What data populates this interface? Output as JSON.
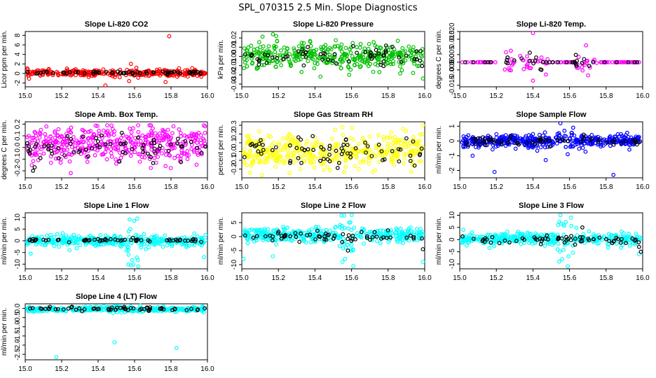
{
  "figure": {
    "title": "SPL_070315  2.5 Min. Slope Diagnostics"
  },
  "chart_data": [
    {
      "type": "scatter",
      "title": "Slope Li-820 CO2",
      "xlabel": "",
      "ylabel": "Licor ppm per min.",
      "xlim": [
        15.0,
        16.0
      ],
      "ylim": [
        -2.8,
        8.8
      ],
      "xticks": [
        15.0,
        15.2,
        15.4,
        15.6,
        15.8,
        16.0
      ],
      "xtick_labels": [
        "15.0",
        "15.2",
        "15.4",
        "15.6",
        "15.8",
        "16.0"
      ],
      "yticks": [
        -2,
        0,
        2,
        4,
        6,
        8
      ],
      "ytick_labels": [
        "-2",
        "0",
        "2",
        "4",
        "6",
        "8"
      ],
      "series": [
        {
          "color": "#ff0000",
          "center": 0.1,
          "spread": 0.35,
          "n": 300,
          "outliers": [
            [
              15.58,
              2.0
            ],
            [
              15.61,
              1.2
            ],
            [
              15.79,
              7.8
            ],
            [
              15.77,
              -1.8
            ],
            [
              15.44,
              -2.5
            ],
            [
              15.57,
              -1.6
            ],
            [
              15.62,
              -0.9
            ]
          ]
        },
        {
          "color": "#000000",
          "center": 0.15,
          "spread": 0.15,
          "n": 60,
          "outliers": []
        }
      ]
    },
    {
      "type": "scatter",
      "title": "Slope Li-820 Pressure",
      "xlabel": "",
      "ylabel": "kPa per min.",
      "xlim": [
        15.0,
        16.0
      ],
      "ylim": [
        -0.033,
        0.027
      ],
      "xticks": [
        15.0,
        15.2,
        15.4,
        15.6,
        15.8,
        16.0
      ],
      "xtick_labels": [
        "15.0",
        "15.2",
        "15.4",
        "15.6",
        "15.8",
        "16.0"
      ],
      "yticks": [
        -0.03,
        -0.02,
        -0.01,
        0.0,
        0.01,
        0.02
      ],
      "ytick_labels": [
        "-0.03",
        "-0.02",
        "-0.01",
        "0.00",
        "0.01",
        "0.02"
      ],
      "series": [
        {
          "color": "#00c000",
          "center": 0.0,
          "spread": 0.007,
          "n": 380,
          "outliers": [
            [
              15.17,
              0.024
            ],
            [
              15.99,
              -0.024
            ],
            [
              15.43,
              -0.022
            ],
            [
              15.84,
              -0.033
            ]
          ]
        },
        {
          "color": "#000000",
          "center": 0.0,
          "spread": 0.005,
          "n": 60,
          "outliers": []
        }
      ]
    },
    {
      "type": "scatter",
      "title": "Slope Li-820 Temp.",
      "xlabel": "",
      "ylabel": "degrees C per min.",
      "xlim": [
        15.0,
        16.0
      ],
      "ylim": [
        -0.016,
        0.02
      ],
      "xticks": [
        15.0,
        15.2,
        15.4,
        15.6,
        15.8,
        16.0
      ],
      "xtick_labels": [
        "15.0",
        "15.2",
        "15.4",
        "15.6",
        "15.8",
        "16.0"
      ],
      "yticks": [
        -0.015,
        -0.005,
        0.0,
        0.005,
        0.015,
        0.02
      ],
      "ytick_labels": [
        "-0.015",
        "-0.005",
        "0.000",
        "0.005",
        "0.015",
        "0.020"
      ],
      "series": [
        {
          "color": "#ff00ff",
          "center": 0.0,
          "spread": 0.0,
          "n": 120,
          "burst": [
            [
              15.22,
              15.48,
              0.004
            ],
            [
              15.62,
              15.75,
              0.003
            ]
          ],
          "outliers": [
            [
              15.4,
              0.019
            ],
            [
              15.4,
              -0.012
            ],
            [
              15.69,
              0.011
            ]
          ]
        },
        {
          "color": "#000000",
          "center": 0.0,
          "spread": 0.0,
          "n": 40,
          "burst": [
            [
              15.25,
              15.45,
              0.003
            ],
            [
              15.63,
              15.72,
              0.002
            ]
          ],
          "outliers": []
        }
      ]
    },
    {
      "type": "scatter",
      "title": "Slope Amb. Box Temp.",
      "xlabel": "",
      "ylabel": "degrees C per min.",
      "xlim": [
        15.0,
        16.0
      ],
      "ylim": [
        -0.26,
        0.22
      ],
      "xticks": [
        15.0,
        15.2,
        15.4,
        15.6,
        15.8,
        16.0
      ],
      "xtick_labels": [
        "15.0",
        "15.2",
        "15.4",
        "15.6",
        "15.8",
        "16.0"
      ],
      "yticks": [
        -0.2,
        -0.1,
        0.0,
        0.1,
        0.2
      ],
      "ytick_labels": [
        "-0.2",
        "-0.1",
        "0.0",
        "0.1",
        "0.2"
      ],
      "series": [
        {
          "color": "#ff00ff",
          "center": 0.02,
          "spread": 0.075,
          "n": 420,
          "outliers": [
            [
              15.45,
              0.19
            ],
            [
              15.69,
              0.19
            ],
            [
              15.98,
              0.19
            ],
            [
              15.25,
              -0.22
            ]
          ]
        },
        {
          "color": "#000000",
          "center": 0.0,
          "spread": 0.06,
          "n": 70,
          "outliers": []
        }
      ]
    },
    {
      "type": "scatter",
      "title": "Slope Gas Stream RH",
      "xlabel": "",
      "ylabel": "percent per min.",
      "xlim": [
        15.0,
        16.0
      ],
      "ylim": [
        -0.3,
        0.34
      ],
      "xticks": [
        15.0,
        15.2,
        15.4,
        15.6,
        15.8,
        16.0
      ],
      "xtick_labels": [
        "15.0",
        "15.2",
        "15.4",
        "15.6",
        "15.8",
        "16.0"
      ],
      "yticks": [
        -0.2,
        -0.1,
        0.0,
        0.1,
        0.2,
        0.3
      ],
      "ytick_labels": [
        "-0.2",
        "-0.1",
        "0.0",
        "0.1",
        "0.2",
        "0.3"
      ],
      "series": [
        {
          "color": "#ffff00",
          "center": 0.0,
          "spread": 0.1,
          "n": 400,
          "outliers": [
            [
              15.99,
              0.3
            ],
            [
              15.55,
              0.28
            ],
            [
              15.11,
              -0.27
            ]
          ]
        },
        {
          "color": "#000000",
          "center": 0.0,
          "spread": 0.09,
          "n": 70,
          "outliers": []
        }
      ]
    },
    {
      "type": "scatter",
      "title": "Slope Sample Flow",
      "xlabel": "",
      "ylabel": "ml/min per min.",
      "xlim": [
        15.0,
        16.0
      ],
      "ylim": [
        -2.5,
        1.3
      ],
      "xticks": [
        15.0,
        15.2,
        15.4,
        15.6,
        15.8,
        16.0
      ],
      "xtick_labels": [
        "15.0",
        "15.2",
        "15.4",
        "15.6",
        "15.8",
        "16.0"
      ],
      "yticks": [
        -2,
        -1,
        0,
        1
      ],
      "ytick_labels": [
        "-2",
        "-1",
        "0",
        "1"
      ],
      "series": [
        {
          "color": "#0000ff",
          "center": 0.0,
          "spread": 0.22,
          "n": 420,
          "outliers": [
            [
              15.55,
              1.2
            ],
            [
              15.19,
              -2.1
            ],
            [
              15.47,
              -1.3
            ],
            [
              15.07,
              -1.0
            ],
            [
              15.59,
              -0.9
            ],
            [
              15.84,
              -2.3
            ],
            [
              15.62,
              0.9
            ]
          ]
        },
        {
          "color": "#000000",
          "center": 0.0,
          "spread": 0.15,
          "n": 60,
          "outliers": []
        }
      ]
    },
    {
      "type": "scatter",
      "title": "Slope Line 1 Flow",
      "xlabel": "",
      "ylabel": "ml/min per min.",
      "xlim": [
        15.0,
        16.0
      ],
      "ylim": [
        -12,
        12
      ],
      "xticks": [
        15.0,
        15.2,
        15.4,
        15.6,
        15.8,
        16.0
      ],
      "xtick_labels": [
        "15.0",
        "15.2",
        "15.4",
        "15.6",
        "15.8",
        "16.0"
      ],
      "yticks": [
        -10,
        -5,
        0,
        5,
        10
      ],
      "ytick_labels": [
        "-10",
        "-5",
        "0",
        "5",
        "10"
      ],
      "series": [
        {
          "color": "#00ffff",
          "center": 0.0,
          "spread": 1.2,
          "n": 380,
          "burst": [
            [
              15.55,
              15.62,
              5.5
            ]
          ],
          "outliers": [
            [
              15.6,
              11.5
            ],
            [
              15.62,
              -11.0
            ],
            [
              15.98,
              -7.0
            ],
            [
              15.03,
              -5.5
            ],
            [
              15.58,
              -10.5
            ]
          ]
        },
        {
          "color": "#000000",
          "center": 0.2,
          "spread": 0.3,
          "n": 60,
          "outliers": []
        }
      ]
    },
    {
      "type": "scatter",
      "title": "Slope Line 2 Flow",
      "xlabel": "",
      "ylabel": "ml/min per min.",
      "xlim": [
        15.0,
        16.0
      ],
      "ylim": [
        -11.5,
        8.5
      ],
      "xticks": [
        15.0,
        15.2,
        15.4,
        15.6,
        15.8,
        16.0
      ],
      "xtick_labels": [
        "15.0",
        "15.2",
        "15.4",
        "15.6",
        "15.8",
        "16.0"
      ],
      "yticks": [
        -10,
        -5,
        0,
        5
      ],
      "ytick_labels": [
        "-10",
        "-5",
        "0",
        "5"
      ],
      "series": [
        {
          "color": "#00ffff",
          "center": 0.5,
          "spread": 1.3,
          "n": 380,
          "burst": [
            [
              15.53,
              15.63,
              5.0
            ]
          ],
          "outliers": [
            [
              15.56,
              7.5
            ],
            [
              15.61,
              -10.5
            ],
            [
              15.17,
              -7.0
            ],
            [
              15.99,
              -9.0
            ],
            [
              15.01,
              -8.0
            ],
            [
              15.55,
              -9.0
            ]
          ]
        },
        {
          "color": "#000000",
          "center": 0.0,
          "spread": 1.0,
          "n": 60,
          "outliers": [
            [
              15.58,
              -5.0
            ],
            [
              15.99,
              -4.5
            ]
          ]
        }
      ]
    },
    {
      "type": "scatter",
      "title": "Slope Line 3 Flow",
      "xlabel": "",
      "ylabel": "ml/min per min.",
      "xlim": [
        15.0,
        16.0
      ],
      "ylim": [
        -12,
        11
      ],
      "xticks": [
        15.0,
        15.2,
        15.4,
        15.6,
        15.8,
        16.0
      ],
      "xtick_labels": [
        "15.0",
        "15.2",
        "15.4",
        "15.6",
        "15.8",
        "16.0"
      ],
      "yticks": [
        -10,
        -5,
        0,
        5,
        10
      ],
      "ytick_labels": [
        "-10",
        "-5",
        "0",
        "5",
        "10"
      ],
      "series": [
        {
          "color": "#00ffff",
          "center": 0.3,
          "spread": 1.2,
          "n": 380,
          "burst": [
            [
              15.53,
              15.62,
              6.0
            ]
          ],
          "outliers": [
            [
              15.55,
              10.0
            ],
            [
              15.59,
              -11.0
            ],
            [
              15.56,
              -8.0
            ],
            [
              15.98,
              -6.0
            ],
            [
              15.02,
              4.0
            ]
          ]
        },
        {
          "color": "#000000",
          "center": 0.0,
          "spread": 0.8,
          "n": 60,
          "outliers": [
            [
              15.99,
              -5.0
            ],
            [
              15.98,
              -3.0
            ],
            [
              15.67,
              5.0
            ]
          ]
        }
      ]
    },
    {
      "type": "scatter",
      "title": "Slope Line 4 (LT) Flow",
      "xlabel": "",
      "ylabel": "ml/min per min.",
      "xlim": [
        15.0,
        16.0
      ],
      "ylim": [
        -2.8,
        0.25
      ],
      "xticks": [
        15.0,
        15.2,
        15.4,
        15.6,
        15.8,
        16.0
      ],
      "xtick_labels": [
        "15.0",
        "15.2",
        "15.4",
        "15.6",
        "15.8",
        "16.0"
      ],
      "yticks": [
        -2.5,
        -2.0,
        -1.5,
        -1.0,
        -0.5,
        0.0
      ],
      "ytick_labels": [
        "-2.5",
        "-2.0",
        "-1.5",
        "-1.0",
        "-0.5",
        "0.0"
      ],
      "series": [
        {
          "color": "#00ffff",
          "center": -0.05,
          "spread": 0.07,
          "n": 380,
          "outliers": [
            [
              15.17,
              -2.65
            ],
            [
              15.49,
              -1.85
            ],
            [
              15.83,
              -2.15
            ]
          ]
        },
        {
          "color": "#000000",
          "center": -0.03,
          "spread": 0.06,
          "n": 60,
          "outliers": []
        }
      ]
    }
  ]
}
